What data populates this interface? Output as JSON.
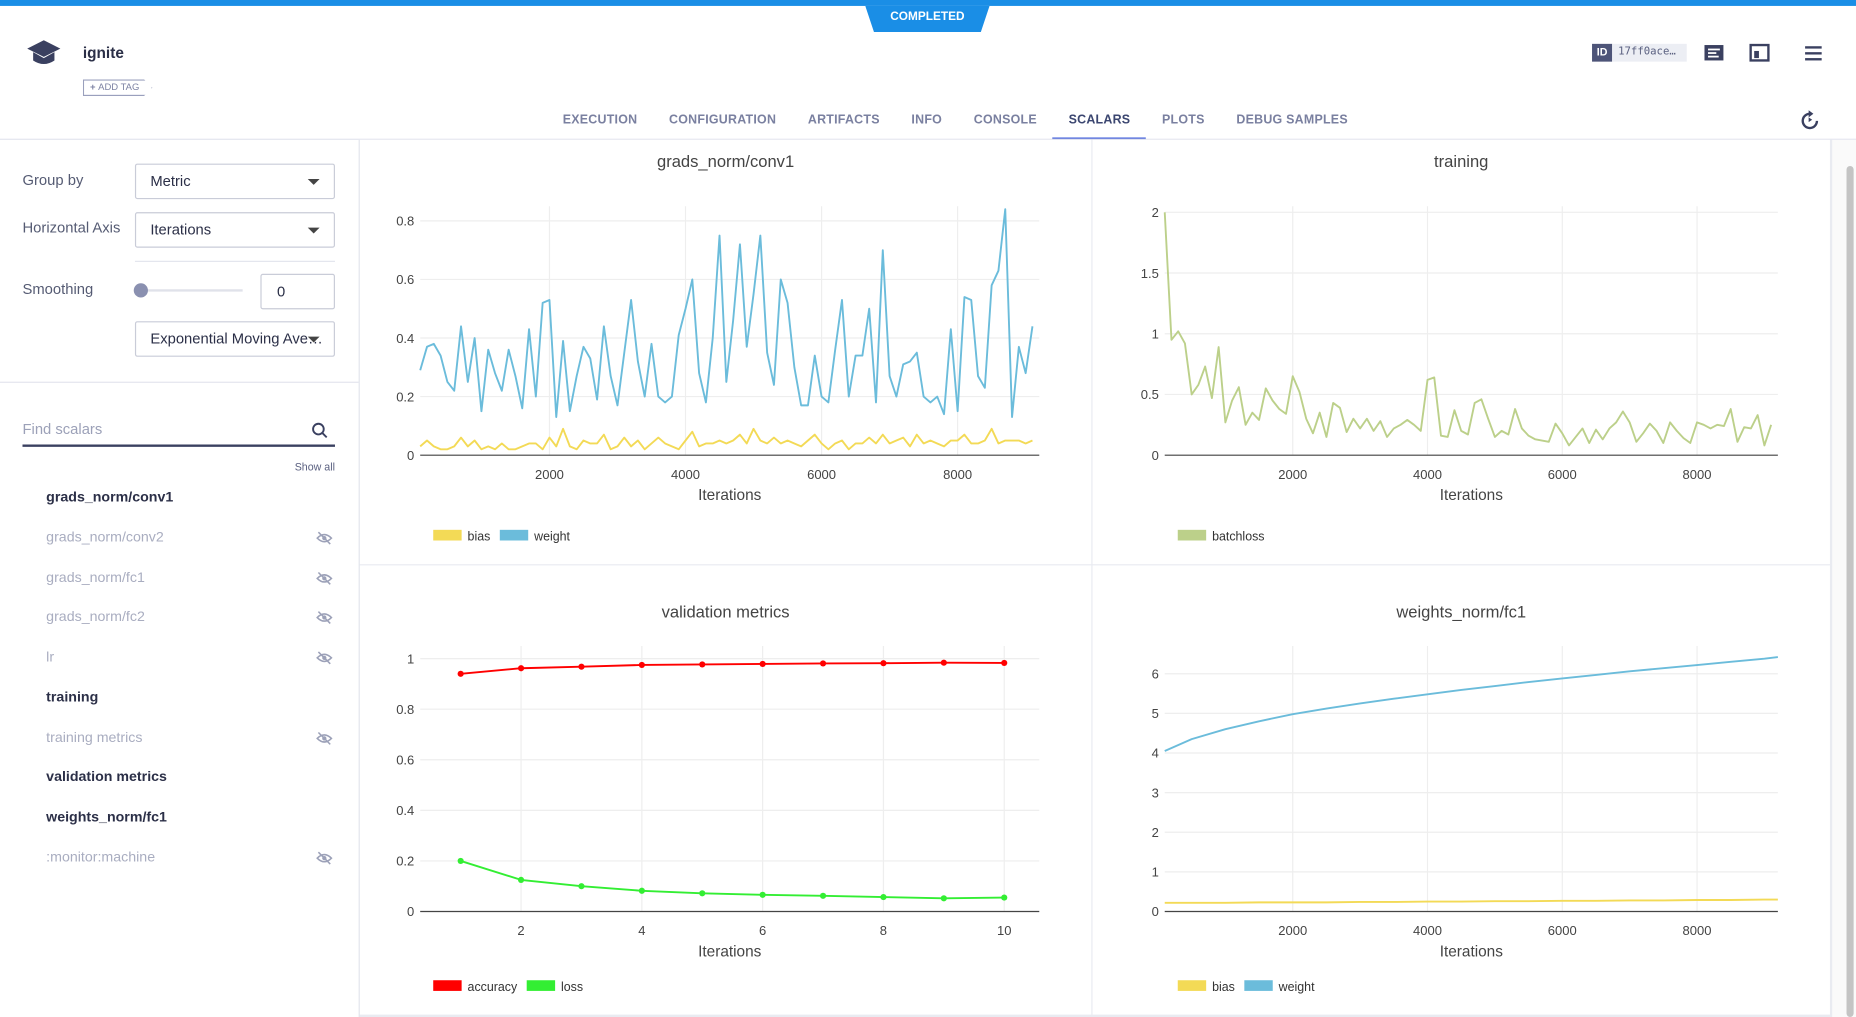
{
  "header": {
    "status": "COMPLETED",
    "title": "ignite",
    "add_tag": "ADD TAG",
    "id_label": "ID",
    "id": "17ff0ace…"
  },
  "tabs": [
    {
      "label": "EXECUTION"
    },
    {
      "label": "CONFIGURATION"
    },
    {
      "label": "ARTIFACTS"
    },
    {
      "label": "INFO"
    },
    {
      "label": "CONSOLE"
    },
    {
      "label": "SCALARS",
      "active": true
    },
    {
      "label": "PLOTS"
    },
    {
      "label": "DEBUG SAMPLES"
    }
  ],
  "sidebar": {
    "group_by": {
      "label": "Group by",
      "value": "Metric"
    },
    "horizontal_axis": {
      "label": "Horizontal Axis",
      "value": "Iterations"
    },
    "smoothing": {
      "label": "Smoothing",
      "value": 0,
      "method": "Exponential Moving Ave…"
    },
    "search_placeholder": "Find scalars",
    "show_all": "Show all",
    "metrics": [
      {
        "name": "grads_norm/conv1"
      },
      {
        "name": "grads_norm/conv2",
        "hidden": true
      },
      {
        "name": "grads_norm/fc1",
        "hidden": true
      },
      {
        "name": "grads_norm/fc2",
        "hidden": true
      },
      {
        "name": "lr",
        "hidden": true
      },
      {
        "name": "training"
      },
      {
        "name": "training metrics",
        "hidden": true
      },
      {
        "name": "validation metrics"
      },
      {
        "name": "weights_norm/fc1"
      },
      {
        "name": ":monitor:machine",
        "hidden": true
      }
    ]
  },
  "charts": [
    {
      "type": "line",
      "title": "grads_norm/conv1",
      "x_label": "Iterations",
      "grid": true,
      "x": [
        100,
        200,
        300,
        400,
        500,
        600,
        700,
        800,
        900,
        1000,
        1100,
        1200,
        1300,
        1400,
        1500,
        1600,
        1700,
        1800,
        1900,
        2000,
        2100,
        2200,
        2300,
        2400,
        2500,
        2600,
        2700,
        2800,
        2900,
        3000,
        3100,
        3200,
        3300,
        3400,
        3500,
        3600,
        3700,
        3800,
        3900,
        4000,
        4100,
        4200,
        4300,
        4400,
        4500,
        4600,
        4700,
        4800,
        4900,
        5000,
        5100,
        5200,
        5300,
        5400,
        5500,
        5600,
        5700,
        5800,
        5900,
        6000,
        6100,
        6200,
        6300,
        6400,
        6500,
        6600,
        6700,
        6800,
        6900,
        7000,
        7100,
        7200,
        7300,
        7400,
        7500,
        7600,
        7700,
        7800,
        7900,
        8000,
        8100,
        8200,
        8300,
        8400,
        8500,
        8600,
        8700,
        8800,
        8900,
        9000,
        9100
      ],
      "xlim": [
        100,
        9200
      ],
      "ylim": [
        0,
        0.85
      ],
      "xticks": [
        2000,
        4000,
        6000,
        8000
      ],
      "yticks": [
        0,
        0.2,
        0.4,
        0.6,
        0.8
      ],
      "series": [
        {
          "name": "bias",
          "color": "#f3da56",
          "values": [
            0.03,
            0.05,
            0.03,
            0.02,
            0.02,
            0.03,
            0.06,
            0.03,
            0.05,
            0.02,
            0.03,
            0.02,
            0.04,
            0.02,
            0.02,
            0.03,
            0.04,
            0.04,
            0.02,
            0.06,
            0.03,
            0.09,
            0.03,
            0.02,
            0.05,
            0.04,
            0.04,
            0.07,
            0.02,
            0.03,
            0.06,
            0.03,
            0.05,
            0.02,
            0.04,
            0.06,
            0.04,
            0.03,
            0.02,
            0.05,
            0.08,
            0.03,
            0.04,
            0.04,
            0.05,
            0.04,
            0.05,
            0.07,
            0.04,
            0.09,
            0.05,
            0.04,
            0.06,
            0.04,
            0.05,
            0.04,
            0.03,
            0.05,
            0.07,
            0.04,
            0.02,
            0.04,
            0.05,
            0.02,
            0.04,
            0.04,
            0.06,
            0.04,
            0.07,
            0.04,
            0.05,
            0.06,
            0.03,
            0.07,
            0.04,
            0.05,
            0.04,
            0.03,
            0.05,
            0.05,
            0.07,
            0.04,
            0.04,
            0.05,
            0.09,
            0.04,
            0.05,
            0.05,
            0.05,
            0.04,
            0.05
          ]
        },
        {
          "name": "weight",
          "color": "#6bbcdb",
          "values": [
            0.29,
            0.37,
            0.38,
            0.34,
            0.25,
            0.22,
            0.44,
            0.25,
            0.4,
            0.15,
            0.36,
            0.28,
            0.22,
            0.36,
            0.27,
            0.16,
            0.43,
            0.2,
            0.52,
            0.53,
            0.13,
            0.39,
            0.15,
            0.27,
            0.37,
            0.33,
            0.19,
            0.44,
            0.27,
            0.17,
            0.35,
            0.53,
            0.32,
            0.2,
            0.38,
            0.2,
            0.18,
            0.2,
            0.41,
            0.5,
            0.6,
            0.28,
            0.18,
            0.4,
            0.75,
            0.25,
            0.46,
            0.72,
            0.37,
            0.55,
            0.75,
            0.35,
            0.24,
            0.6,
            0.52,
            0.3,
            0.17,
            0.17,
            0.34,
            0.2,
            0.18,
            0.36,
            0.53,
            0.2,
            0.34,
            0.34,
            0.5,
            0.18,
            0.7,
            0.27,
            0.2,
            0.31,
            0.32,
            0.35,
            0.2,
            0.18,
            0.2,
            0.14,
            0.43,
            0.15,
            0.54,
            0.53,
            0.27,
            0.23,
            0.58,
            0.63,
            0.84,
            0.13,
            0.37,
            0.28,
            0.44
          ]
        }
      ]
    },
    {
      "type": "line",
      "title": "training",
      "x_label": "Iterations",
      "grid": true,
      "x": [
        100,
        200,
        300,
        400,
        500,
        600,
        700,
        800,
        900,
        1000,
        1100,
        1200,
        1300,
        1400,
        1500,
        1600,
        1700,
        1800,
        1900,
        2000,
        2100,
        2200,
        2300,
        2400,
        2500,
        2600,
        2700,
        2800,
        2900,
        3000,
        3100,
        3200,
        3300,
        3400,
        3500,
        3600,
        3700,
        3800,
        3900,
        4000,
        4100,
        4200,
        4300,
        4400,
        4500,
        4600,
        4700,
        4800,
        4900,
        5000,
        5100,
        5200,
        5300,
        5400,
        5500,
        5600,
        5700,
        5800,
        5900,
        6000,
        6100,
        6200,
        6300,
        6400,
        6500,
        6600,
        6700,
        6800,
        6900,
        7000,
        7100,
        7200,
        7300,
        7400,
        7500,
        7600,
        7700,
        7800,
        7900,
        8000,
        8100,
        8200,
        8300,
        8400,
        8500,
        8600,
        8700,
        8800,
        8900,
        9000,
        9100
      ],
      "xlim": [
        100,
        9200
      ],
      "ylim": [
        0,
        2.05
      ],
      "xticks": [
        2000,
        4000,
        6000,
        8000
      ],
      "yticks": [
        0,
        0.5,
        1,
        1.5,
        2
      ],
      "series": [
        {
          "name": "batchloss",
          "color": "#bcd08a",
          "values": [
            2.0,
            0.95,
            1.02,
            0.92,
            0.5,
            0.58,
            0.73,
            0.47,
            0.89,
            0.27,
            0.45,
            0.56,
            0.25,
            0.35,
            0.29,
            0.55,
            0.45,
            0.38,
            0.34,
            0.65,
            0.52,
            0.3,
            0.18,
            0.35,
            0.15,
            0.43,
            0.39,
            0.19,
            0.3,
            0.22,
            0.3,
            0.2,
            0.28,
            0.15,
            0.22,
            0.25,
            0.29,
            0.25,
            0.2,
            0.62,
            0.64,
            0.16,
            0.15,
            0.37,
            0.2,
            0.17,
            0.43,
            0.46,
            0.3,
            0.15,
            0.2,
            0.17,
            0.38,
            0.22,
            0.16,
            0.13,
            0.12,
            0.11,
            0.26,
            0.18,
            0.08,
            0.15,
            0.22,
            0.1,
            0.21,
            0.13,
            0.22,
            0.27,
            0.36,
            0.27,
            0.11,
            0.18,
            0.26,
            0.2,
            0.1,
            0.27,
            0.2,
            0.14,
            0.1,
            0.27,
            0.25,
            0.22,
            0.25,
            0.24,
            0.38,
            0.11,
            0.23,
            0.22,
            0.33,
            0.08,
            0.25
          ]
        }
      ]
    },
    {
      "type": "line",
      "title": "validation metrics",
      "x_label": "Iterations",
      "grid": true,
      "markers": true,
      "x": [
        1,
        2,
        3,
        4,
        5,
        6,
        7,
        8,
        9,
        10
      ],
      "xlim": [
        0.33,
        10.58
      ],
      "ylim": [
        0,
        1.05
      ],
      "xticks": [
        2,
        4,
        6,
        8,
        10
      ],
      "yticks": [
        0,
        0.2,
        0.4,
        0.6,
        0.8,
        1
      ],
      "series": [
        {
          "name": "accuracy",
          "color": "#ff0000",
          "values": [
            0.94,
            0.962,
            0.968,
            0.975,
            0.977,
            0.979,
            0.981,
            0.982,
            0.984,
            0.983
          ]
        },
        {
          "name": "loss",
          "color": "#33ee33",
          "values": [
            0.2,
            0.125,
            0.1,
            0.082,
            0.072,
            0.066,
            0.062,
            0.057,
            0.052,
            0.055
          ]
        }
      ]
    },
    {
      "type": "line",
      "title": "weights_norm/fc1",
      "x_label": "Iterations",
      "grid": true,
      "x": [
        100,
        500,
        1000,
        1500,
        2000,
        2500,
        3000,
        3500,
        4000,
        4500,
        5000,
        5500,
        6000,
        6500,
        7000,
        7500,
        8000,
        8500,
        9000,
        9200
      ],
      "xlim": [
        100,
        9200
      ],
      "ylim": [
        0,
        6.7
      ],
      "xticks": [
        2000,
        4000,
        6000,
        8000
      ],
      "yticks": [
        0,
        1,
        2,
        3,
        4,
        5,
        6
      ],
      "series": [
        {
          "name": "bias",
          "color": "#f3da56",
          "values": [
            0.22,
            0.22,
            0.22,
            0.23,
            0.23,
            0.23,
            0.24,
            0.24,
            0.25,
            0.25,
            0.26,
            0.26,
            0.27,
            0.27,
            0.28,
            0.28,
            0.29,
            0.29,
            0.3,
            0.3
          ]
        },
        {
          "name": "weight",
          "color": "#6bbcdb",
          "values": [
            4.05,
            4.35,
            4.6,
            4.8,
            4.98,
            5.12,
            5.25,
            5.37,
            5.48,
            5.59,
            5.69,
            5.79,
            5.88,
            5.97,
            6.06,
            6.14,
            6.22,
            6.3,
            6.38,
            6.42
          ]
        }
      ]
    }
  ]
}
